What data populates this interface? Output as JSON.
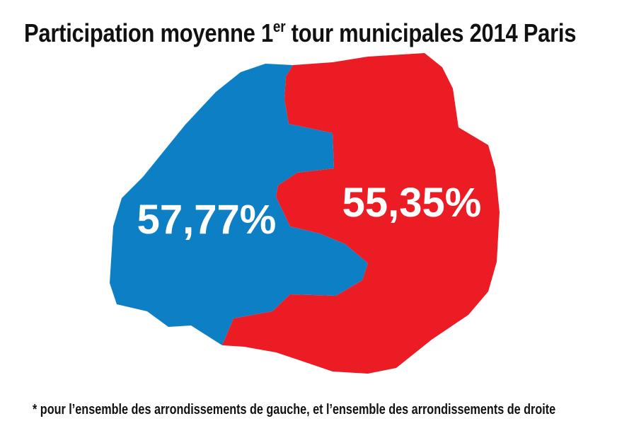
{
  "title": {
    "before_sup": "Participation moyenne 1",
    "sup": "er",
    "after_sup": " tour municipales 2014 Paris"
  },
  "regions": [
    {
      "side": "gauche",
      "value_label": "57,77%",
      "color": "#0c7fc5"
    },
    {
      "side": "droite",
      "value_label": "55,35%",
      "color": "#ec1c24"
    }
  ],
  "footnote": "* pour l’ensemble des arrondissements de gauche, et l’ensemble des arrondissements de droite"
}
